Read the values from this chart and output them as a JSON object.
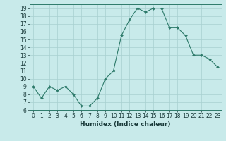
{
  "x": [
    0,
    1,
    2,
    3,
    4,
    5,
    6,
    7,
    8,
    9,
    10,
    11,
    12,
    13,
    14,
    15,
    16,
    17,
    18,
    19,
    20,
    21,
    22,
    23
  ],
  "y": [
    9,
    7.5,
    9,
    8.5,
    9,
    8,
    6.5,
    6.5,
    7.5,
    10,
    11,
    15.5,
    17.5,
    19,
    18.5,
    19,
    19,
    16.5,
    16.5,
    15.5,
    13,
    13,
    12.5,
    11.5
  ],
  "line_color": "#2d7a6a",
  "marker_color": "#2d7a6a",
  "bg_color": "#c8eaea",
  "grid_color": "#a8d0d0",
  "xlabel": "Humidex (Indice chaleur)",
  "ylim": [
    6,
    19.5
  ],
  "xlim": [
    -0.5,
    23.5
  ],
  "yticks": [
    6,
    7,
    8,
    9,
    10,
    11,
    12,
    13,
    14,
    15,
    16,
    17,
    18,
    19
  ],
  "xticks": [
    0,
    1,
    2,
    3,
    4,
    5,
    6,
    7,
    8,
    9,
    10,
    11,
    12,
    13,
    14,
    15,
    16,
    17,
    18,
    19,
    20,
    21,
    22,
    23
  ],
  "tick_fontsize": 5.5,
  "label_fontsize": 6.5
}
